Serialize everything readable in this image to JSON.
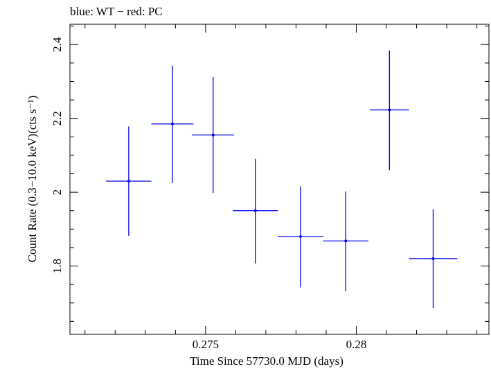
{
  "chart_data": {
    "type": "scatter",
    "title": "blue: WT − red: PC",
    "xlabel": "Time Since 57730.0 MJD (days)",
    "ylabel": "Count Rate (0.3−10.0 keV)(cts s⁻¹)",
    "xlim": [
      0.2705,
      0.2844
    ],
    "ylim": [
      1.615,
      2.455
    ],
    "x_ticks": [
      {
        "value": 0.275,
        "label": "0.275"
      },
      {
        "value": 0.28,
        "label": "0.28"
      }
    ],
    "y_ticks": [
      {
        "value": 1.8,
        "label": "1.8"
      },
      {
        "value": 2.0,
        "label": "2"
      },
      {
        "value": 2.2,
        "label": "2.2"
      },
      {
        "value": 2.4,
        "label": "2.4"
      }
    ],
    "x_minor_step": 0.001,
    "y_minor_step": 0.05,
    "grid": false,
    "series": [
      {
        "name": "WT",
        "color": "#0000ee",
        "points": [
          {
            "x": 0.27245,
            "xerr": 0.00075,
            "y": 2.03,
            "yerr_low": 0.148,
            "yerr_high": 0.148
          },
          {
            "x": 0.2739,
            "xerr": 0.0007,
            "y": 2.185,
            "yerr_low": 0.16,
            "yerr_high": 0.158
          },
          {
            "x": 0.27525,
            "xerr": 0.0007,
            "y": 2.155,
            "yerr_low": 0.157,
            "yerr_high": 0.157
          },
          {
            "x": 0.27665,
            "xerr": 0.00075,
            "y": 1.95,
            "yerr_low": 0.143,
            "yerr_high": 0.141
          },
          {
            "x": 0.27815,
            "xerr": 0.00075,
            "y": 1.88,
            "yerr_low": 0.138,
            "yerr_high": 0.136
          },
          {
            "x": 0.27965,
            "xerr": 0.00075,
            "y": 1.868,
            "yerr_low": 0.136,
            "yerr_high": 0.134
          },
          {
            "x": 0.2811,
            "xerr": 0.00065,
            "y": 2.223,
            "yerr_low": 0.163,
            "yerr_high": 0.161
          },
          {
            "x": 0.28255,
            "xerr": 0.0008,
            "y": 1.82,
            "yerr_low": 0.134,
            "yerr_high": 0.134
          }
        ]
      }
    ]
  }
}
